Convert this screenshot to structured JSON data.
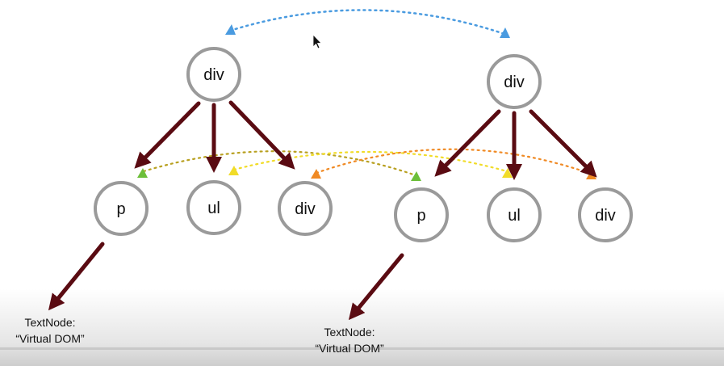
{
  "tree_left": {
    "root": "div",
    "children": [
      "p",
      "ul",
      "div"
    ],
    "leaf_line1": "TextNode:",
    "leaf_line2": "“Virtual DOM”"
  },
  "tree_right": {
    "root": "div",
    "children": [
      "p",
      "ul",
      "div"
    ],
    "leaf_line1": "TextNode:",
    "leaf_line2": "“Virtual DOM”"
  },
  "colors": {
    "node_ring": "#9a9a9a",
    "edge": "#5a0b12",
    "root_link": "#4a9be0",
    "link_p": "#6dbf3a",
    "link_ul": "#f1dc28",
    "link_div": "#f08a24"
  },
  "icons": {
    "cursor": "mouse-pointer-icon"
  }
}
